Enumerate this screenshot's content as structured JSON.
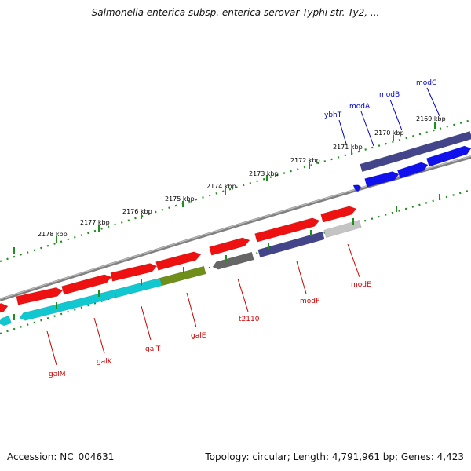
{
  "title": "Salmonella enterica subsp. enterica serovar Typhi str. Ty2, ...",
  "footer": {
    "accession": "Accession: NC_004631",
    "topology": "Topology: circular; Length: 4,791,961 bp; Genes: 4,423"
  },
  "colors": {
    "backbone": "#888888",
    "tick": "#228B22",
    "label_top": "#0000cc",
    "label_bottom": "#cc0000",
    "axis_label": "#000000"
  },
  "axis_labels": [
    "2169 kbp",
    "2170 kbp",
    "2171 kbp",
    "2172 kbp",
    "2173 kbp",
    "2174 kbp",
    "2175 kbp",
    "2176 kbp",
    "2177 kbp",
    "2178 kbp"
  ],
  "top_gene_labels": [
    "ybhT",
    "modA",
    "modB",
    "modC"
  ],
  "bottom_gene_labels": [
    "galM",
    "galK",
    "galT",
    "galE",
    "t2110",
    "modF",
    "modE"
  ],
  "tracks": {
    "forward_cds": {
      "color": "#ee1111"
    },
    "reverse_blue": {
      "color": "#1111ee"
    },
    "reverse_navy": {
      "color": "#44448a"
    },
    "reverse_cyan": {
      "color": "#11c8d0"
    },
    "reverse_olive": {
      "color": "#6f8f1a"
    },
    "reverse_gray": {
      "color": "#666666"
    },
    "reverse_silver": {
      "color": "#c4c4c4"
    }
  }
}
